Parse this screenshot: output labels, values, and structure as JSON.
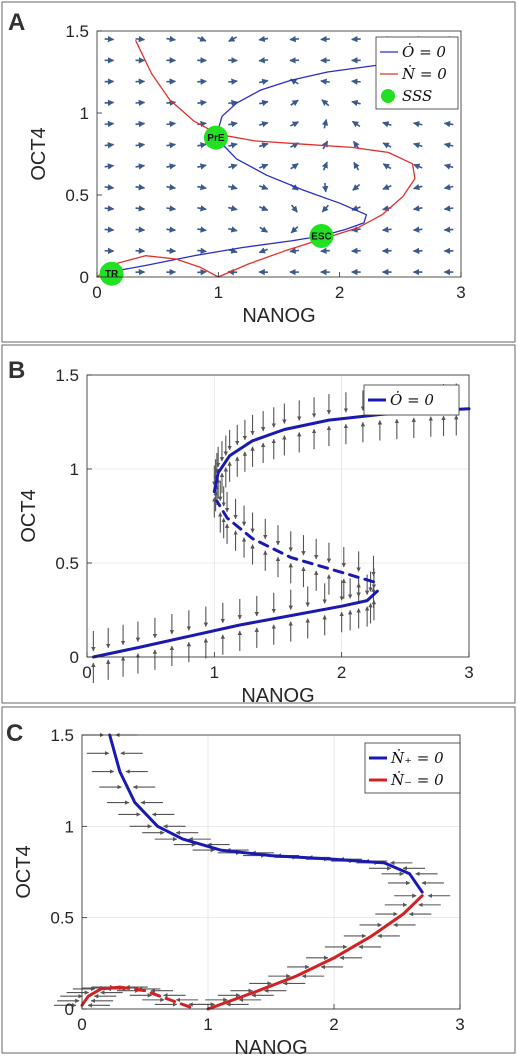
{
  "chart_data": [
    {
      "panel": "A",
      "type": "line",
      "xlabel": "NANOG",
      "ylabel": "OCT4",
      "xlim": [
        0,
        3
      ],
      "ylim": [
        0,
        1.5
      ],
      "xticks": [
        "0",
        "1",
        "2",
        "3"
      ],
      "yticks": [
        "0",
        "0.5",
        "1",
        "1.5"
      ],
      "grid": false,
      "legend": {
        "position": "top-right",
        "entries": [
          {
            "label": "Ȯ = 0",
            "color": "#2a2fc2",
            "kind": "line"
          },
          {
            "label": "Ṅ = 0",
            "color": "#e0322c",
            "kind": "line"
          },
          {
            "label": "SSS",
            "color": "#22e022",
            "kind": "marker"
          }
        ]
      },
      "series": [
        {
          "name": "Ȯ = 0",
          "color": "#2a2fc2",
          "points": [
            [
              0.1,
              0.03
            ],
            [
              0.4,
              0.07
            ],
            [
              0.8,
              0.13
            ],
            [
              1.2,
              0.18
            ],
            [
              1.6,
              0.22
            ],
            [
              1.85,
              0.25
            ],
            [
              2.05,
              0.29
            ],
            [
              2.2,
              0.33
            ],
            [
              2.22,
              0.38
            ],
            [
              2.0,
              0.45
            ],
            [
              1.7,
              0.53
            ],
            [
              1.4,
              0.62
            ],
            [
              1.15,
              0.72
            ],
            [
              1.02,
              0.82
            ],
            [
              1.0,
              0.9
            ],
            [
              1.03,
              0.98
            ],
            [
              1.15,
              1.06
            ],
            [
              1.35,
              1.14
            ],
            [
              1.6,
              1.2
            ],
            [
              1.9,
              1.25
            ],
            [
              2.3,
              1.29
            ],
            [
              2.5,
              1.3
            ]
          ]
        },
        {
          "name": "Ṅ = 0",
          "color": "#e0322c",
          "points": [
            [
              0.32,
              1.44
            ],
            [
              0.45,
              1.24
            ],
            [
              0.6,
              1.08
            ],
            [
              0.8,
              0.95
            ],
            [
              1.0,
              0.87
            ],
            [
              1.3,
              0.83
            ],
            [
              1.7,
              0.81
            ],
            [
              2.1,
              0.79
            ],
            [
              2.4,
              0.76
            ],
            [
              2.6,
              0.69
            ],
            [
              2.62,
              0.6
            ],
            [
              2.52,
              0.49
            ],
            [
              2.35,
              0.38
            ],
            [
              2.15,
              0.3
            ],
            [
              1.85,
              0.23
            ],
            [
              1.55,
              0.16
            ],
            [
              1.25,
              0.08
            ],
            [
              1.0,
              0.0
            ],
            [
              0.85,
              0.06
            ],
            [
              0.65,
              0.11
            ],
            [
              0.4,
              0.13
            ],
            [
              0.15,
              0.08
            ],
            [
              0.05,
              0.03
            ],
            [
              0.0,
              0.0
            ]
          ]
        }
      ],
      "points": [
        {
          "label": "TR",
          "x": 0.12,
          "y": 0.02
        },
        {
          "label": "PrE",
          "x": 0.98,
          "y": 0.85
        },
        {
          "label": "ESC",
          "x": 1.85,
          "y": 0.25
        }
      ],
      "vector_field": {
        "color": "#3a5a8c",
        "grid_x": [
          0.1,
          2.9,
          12
        ],
        "grid_y": [
          0.03,
          1.45,
          12
        ]
      }
    },
    {
      "panel": "B",
      "type": "line",
      "xlabel": "NANOG",
      "ylabel": "OCT4",
      "xlim": [
        0,
        3
      ],
      "ylim": [
        0,
        1.5
      ],
      "xticks": [
        "0",
        "1",
        "2",
        "3"
      ],
      "yticks": [
        "0",
        "0.5",
        "1",
        "1.5"
      ],
      "grid": true,
      "legend": {
        "position": "top-right",
        "entries": [
          {
            "label": "Ȯ = 0",
            "color": "#1a1ab0",
            "kind": "line"
          }
        ]
      },
      "series": [
        {
          "name": "Ȯ = 0",
          "style": "solid",
          "color": "#1a1ab0",
          "points": [
            [
              0.05,
              0.0
            ],
            [
              0.4,
              0.05
            ],
            [
              0.8,
              0.11
            ],
            [
              1.2,
              0.17
            ],
            [
              1.6,
              0.22
            ],
            [
              2.0,
              0.27
            ],
            [
              2.2,
              0.3
            ],
            [
              2.28,
              0.35
            ]
          ]
        },
        {
          "name": "Ȯ = 0",
          "style": "dashed",
          "color": "#1a1ab0",
          "points": [
            [
              2.25,
              0.4
            ],
            [
              1.9,
              0.47
            ],
            [
              1.6,
              0.53
            ],
            [
              1.3,
              0.63
            ],
            [
              1.1,
              0.74
            ],
            [
              1.02,
              0.83
            ]
          ]
        },
        {
          "name": "Ȯ = 0",
          "style": "solid",
          "color": "#1a1ab0",
          "points": [
            [
              1.0,
              0.88
            ],
            [
              1.03,
              0.98
            ],
            [
              1.12,
              1.07
            ],
            [
              1.3,
              1.15
            ],
            [
              1.55,
              1.21
            ],
            [
              1.9,
              1.26
            ],
            [
              2.3,
              1.29
            ],
            [
              2.7,
              1.31
            ],
            [
              3.0,
              1.32
            ]
          ]
        }
      ],
      "arrow_color": "#555555"
    },
    {
      "panel": "C",
      "type": "line",
      "xlabel": "NANOG",
      "ylabel": "OCT4",
      "xlim": [
        0,
        3
      ],
      "ylim": [
        0,
        1.5
      ],
      "xticks": [
        "0",
        "1",
        "2",
        "3"
      ],
      "yticks": [
        "0",
        "0.5",
        "1",
        "1.5"
      ],
      "grid": true,
      "legend": {
        "position": "top-right",
        "entries": [
          {
            "label": "Ṅ₊ = 0",
            "color": "#1a1ab0",
            "kind": "line"
          },
          {
            "label": "Ṅ₋ = 0",
            "color": "#d42020",
            "kind": "line"
          }
        ]
      },
      "series": [
        {
          "name": "Ṅ₊ = 0",
          "style": "solid",
          "color": "#1a1ab0",
          "points": [
            [
              0.22,
              1.5
            ],
            [
              0.3,
              1.3
            ],
            [
              0.42,
              1.13
            ],
            [
              0.6,
              1.0
            ],
            [
              0.8,
              0.93
            ],
            [
              1.1,
              0.87
            ],
            [
              1.5,
              0.84
            ],
            [
              2.0,
              0.82
            ],
            [
              2.4,
              0.8
            ],
            [
              2.6,
              0.74
            ],
            [
              2.7,
              0.64
            ]
          ]
        },
        {
          "name": "Ṅ₋ = 0",
          "style": "solid",
          "color": "#d42020",
          "points": [
            [
              2.7,
              0.62
            ],
            [
              2.55,
              0.52
            ],
            [
              2.3,
              0.4
            ],
            [
              2.0,
              0.28
            ],
            [
              1.7,
              0.18
            ],
            [
              1.4,
              0.1
            ],
            [
              1.2,
              0.05
            ],
            [
              1.0,
              0.0
            ]
          ]
        },
        {
          "name": "Ṅ₋ = 0",
          "style": "dashed",
          "color": "#d42020",
          "points": [
            [
              0.3,
              0.12
            ],
            [
              0.5,
              0.1
            ],
            [
              0.7,
              0.05
            ],
            [
              0.9,
              0.0
            ]
          ]
        },
        {
          "name": "Ṅ₋ = 0",
          "style": "solid",
          "color": "#d42020",
          "points": [
            [
              0.0,
              0.02
            ],
            [
              0.05,
              0.07
            ],
            [
              0.15,
              0.11
            ],
            [
              0.3,
              0.12
            ]
          ]
        }
      ],
      "arrow_color": "#555555"
    }
  ]
}
